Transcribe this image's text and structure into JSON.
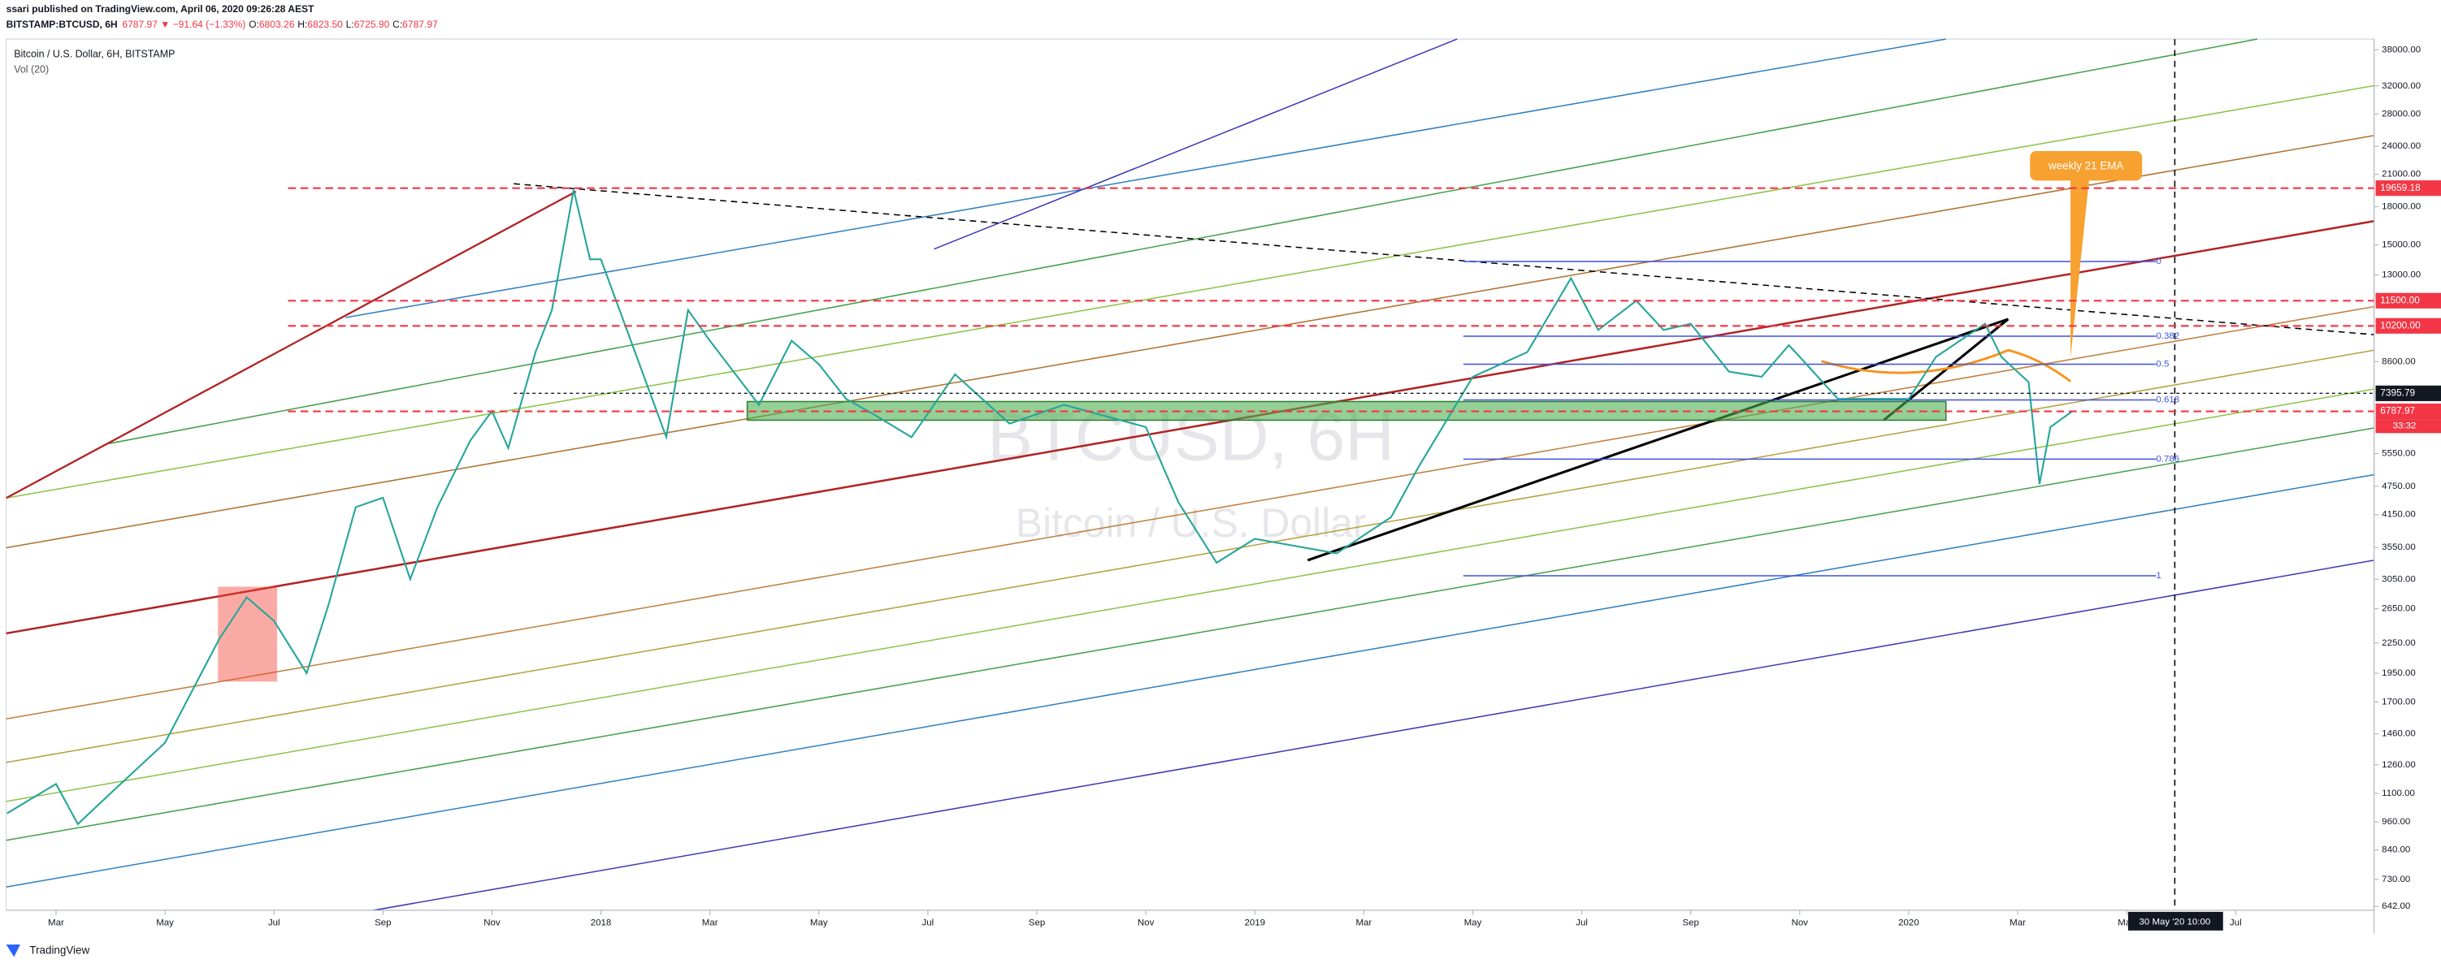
{
  "header": {
    "publisher": "ssari published on TradingView.com, April 06, 2020 09:26:28 AEST",
    "symbol": "BITSTAMP:BTCUSD, 6H",
    "change": "6787.97 ▼ −91.64 (−1.33%)",
    "ohlc": [
      {
        "label": "O:",
        "value": "6803.26"
      },
      {
        "label": "H:",
        "value": "6823.50"
      },
      {
        "label": "L:",
        "value": "6725.90"
      },
      {
        "label": "C:",
        "value": "6787.97"
      }
    ]
  },
  "chart_data": {
    "type": "line",
    "title": "Bitcoin / U.S. Dollar, 6H, BITSTAMP",
    "subtitle": "Vol (20)",
    "watermark": "BTCUSD, 6H",
    "watermark_sub": "Bitcoin / U.S. Dollar",
    "log_scale": true,
    "ylim": [
      630,
      40000
    ],
    "xlim": [
      1.086,
      44.54
    ],
    "yticks": [
      {
        "value": 38000,
        "label": "38000.00"
      },
      {
        "value": 32000,
        "label": "32000.00"
      },
      {
        "value": 28000,
        "label": "28000.00"
      },
      {
        "value": 24000,
        "label": "24000.00"
      },
      {
        "value": 21000,
        "label": "21000.00"
      },
      {
        "value": 18000,
        "label": "18000.00"
      },
      {
        "value": 15000,
        "label": "15000.00"
      },
      {
        "value": 13000,
        "label": "13000.00"
      },
      {
        "value": 8600,
        "label": "8600.00"
      },
      {
        "value": 5550,
        "label": "5550.00"
      },
      {
        "value": 4750,
        "label": "4750.00"
      },
      {
        "value": 4150,
        "label": "4150.00"
      },
      {
        "value": 3550,
        "label": "3550.00"
      },
      {
        "value": 3050,
        "label": "3050.00"
      },
      {
        "value": 2650,
        "label": "2650.00"
      },
      {
        "value": 2250,
        "label": "2250.00"
      },
      {
        "value": 1950,
        "label": "1950.00"
      },
      {
        "value": 1700,
        "label": "1700.00"
      },
      {
        "value": 1460,
        "label": "1460.00"
      },
      {
        "value": 1260,
        "label": "1260.00"
      },
      {
        "value": 1100,
        "label": "1100.00"
      },
      {
        "value": 960,
        "label": "960.00"
      },
      {
        "value": 840,
        "label": "840.00"
      },
      {
        "value": 730,
        "label": "730.00"
      },
      {
        "value": 642,
        "label": "642.00"
      }
    ],
    "xticks": [
      {
        "value": 2,
        "label": "Mar"
      },
      {
        "value": 4,
        "label": "May"
      },
      {
        "value": 6,
        "label": "Jul"
      },
      {
        "value": 8,
        "label": "Sep"
      },
      {
        "value": 10,
        "label": "Nov"
      },
      {
        "value": 12,
        "label": "2018"
      },
      {
        "value": 14,
        "label": "Mar"
      },
      {
        "value": 16,
        "label": "May"
      },
      {
        "value": 18,
        "label": "Jul"
      },
      {
        "value": 20,
        "label": "Sep"
      },
      {
        "value": 22,
        "label": "Nov"
      },
      {
        "value": 24,
        "label": "2019"
      },
      {
        "value": 26,
        "label": "Mar"
      },
      {
        "value": 28,
        "label": "May"
      },
      {
        "value": 30,
        "label": "Jul"
      },
      {
        "value": 32,
        "label": "Sep"
      },
      {
        "value": 34,
        "label": "Nov"
      },
      {
        "value": 36,
        "label": "2020"
      },
      {
        "value": 38,
        "label": "Mar"
      },
      {
        "value": 40,
        "label": "May"
      },
      {
        "value": 42,
        "label": "Jul"
      }
    ],
    "crosshair_label": "30 May '20  10:00",
    "series": [
      {
        "name": "BTCUSD",
        "color": "#26a69a",
        "x": [
          1.1,
          2,
          2.4,
          3,
          4,
          5,
          5.5,
          6,
          6.6,
          7,
          7.5,
          8,
          8.5,
          9,
          9.6,
          10,
          10.3,
          10.8,
          11.1,
          11.5,
          11.8,
          12,
          13.2,
          13.6,
          14,
          14.9,
          15.5,
          16,
          16.5,
          17,
          17.7,
          18.5,
          19.5,
          20.5,
          22,
          22.6,
          23.3,
          24,
          25.5,
          26.5,
          27,
          28,
          29,
          29.8,
          30.3,
          31,
          31.5,
          32,
          32.7,
          33.3,
          33.8,
          34,
          34.7,
          35.5,
          36,
          36.5,
          37.4,
          37.7,
          38.2,
          38.4,
          38.6,
          39
        ],
        "values": [
          1000,
          1150,
          950,
          1100,
          1400,
          2300,
          2800,
          2500,
          1950,
          2700,
          4300,
          4500,
          3050,
          4300,
          5900,
          6800,
          5700,
          9000,
          11000,
          19500,
          14000,
          14000,
          6000,
          11000,
          9500,
          7000,
          9500,
          8500,
          7200,
          6700,
          6000,
          8100,
          6400,
          7000,
          6300,
          4400,
          3300,
          3700,
          3450,
          4100,
          5200,
          8000,
          9000,
          12800,
          10000,
          11500,
          10000,
          10300,
          8200,
          8000,
          9300,
          8800,
          7200,
          7200,
          7200,
          8800,
          10300,
          8800,
          7800,
          4800,
          6300,
          6788
        ]
      }
    ],
    "price_tags": [
      {
        "value": 19659.18,
        "color": "#f23645"
      },
      {
        "value": 11500,
        "label": "11500.00",
        "color": "#f23645"
      },
      {
        "value": 10200,
        "label": "10200.00",
        "color": "#f23645"
      },
      {
        "value": 7395.79,
        "color": "#131722"
      },
      {
        "value": 6787.97,
        "color": "#f23645",
        "countdown": "33:32"
      }
    ],
    "annotations": [
      {
        "text": "weekly 21 EMA"
      }
    ],
    "fib_labels": [
      "0",
      "0.382",
      "0.5",
      "0.618",
      "0.786",
      "1"
    ]
  },
  "footer": "TradingView"
}
